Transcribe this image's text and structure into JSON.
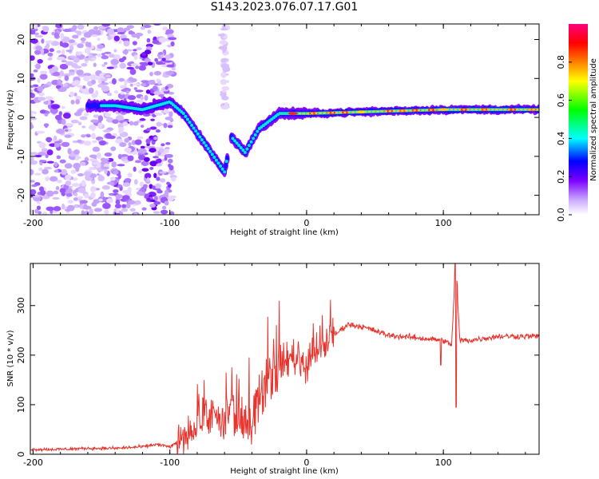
{
  "title": "S143.2023.076.07.17.G01",
  "chart_data": [
    {
      "type": "heatmap",
      "xlabel": "Height of straight line (km)",
      "ylabel": "Frequency (Hz)",
      "xlim": [
        -202,
        170
      ],
      "ylim": [
        -25,
        24
      ],
      "xticks": [
        -200,
        -100,
        0,
        100
      ],
      "yticks": [
        -20,
        -10,
        0,
        10,
        20
      ],
      "colorbar": {
        "label": "Normalized spectral amplitude",
        "range": [
          0,
          1
        ],
        "ticks": [
          "0.0",
          "0.2",
          "0.4",
          "0.6",
          "0.8"
        ],
        "colors": [
          "#ffffff",
          "#c9a6ff",
          "#7b00ff",
          "#0000ff",
          "#00ffff",
          "#00ff00",
          "#ffff00",
          "#ff8000",
          "#ff0000",
          "#ff0080"
        ]
      },
      "ridge": [
        {
          "x": -160,
          "y": 3
        },
        {
          "x": -140,
          "y": 3
        },
        {
          "x": -120,
          "y": 2
        },
        {
          "x": -100,
          "y": 4
        },
        {
          "x": -90,
          "y": 1
        },
        {
          "x": -80,
          "y": -4
        },
        {
          "x": -70,
          "y": -9
        },
        {
          "x": -60,
          "y": -14
        },
        {
          "x": -55,
          "y": -5
        },
        {
          "x": -45,
          "y": -9
        },
        {
          "x": -35,
          "y": -3
        },
        {
          "x": -20,
          "y": 1
        },
        {
          "x": 0,
          "y": 1
        },
        {
          "x": 50,
          "y": 1.5
        },
        {
          "x": 100,
          "y": 2
        },
        {
          "x": 170,
          "y": 2
        }
      ]
    },
    {
      "type": "line",
      "xlabel": "Height of straight line (km)",
      "ylabel": "SNR (10 * v/v)",
      "xlim": [
        -202,
        170
      ],
      "ylim": [
        0,
        385
      ],
      "xticks": [
        -200,
        -100,
        0,
        100
      ],
      "yticks": [
        0,
        100,
        200,
        300
      ],
      "color": "#e8332d",
      "x": [
        -202,
        -180,
        -160,
        -140,
        -120,
        -110,
        -100,
        -90,
        -80,
        -70,
        -60,
        -55,
        -50,
        -40,
        -30,
        -20,
        -10,
        0,
        10,
        20,
        30,
        40,
        60,
        80,
        100,
        106,
        109,
        112,
        120,
        140,
        170
      ],
      "y": [
        10,
        10,
        12,
        12,
        15,
        20,
        15,
        30,
        60,
        80,
        60,
        100,
        50,
        80,
        150,
        180,
        200,
        180,
        210,
        240,
        262,
        258,
        240,
        235,
        230,
        220,
        385,
        230,
        230,
        238,
        238
      ]
    }
  ]
}
